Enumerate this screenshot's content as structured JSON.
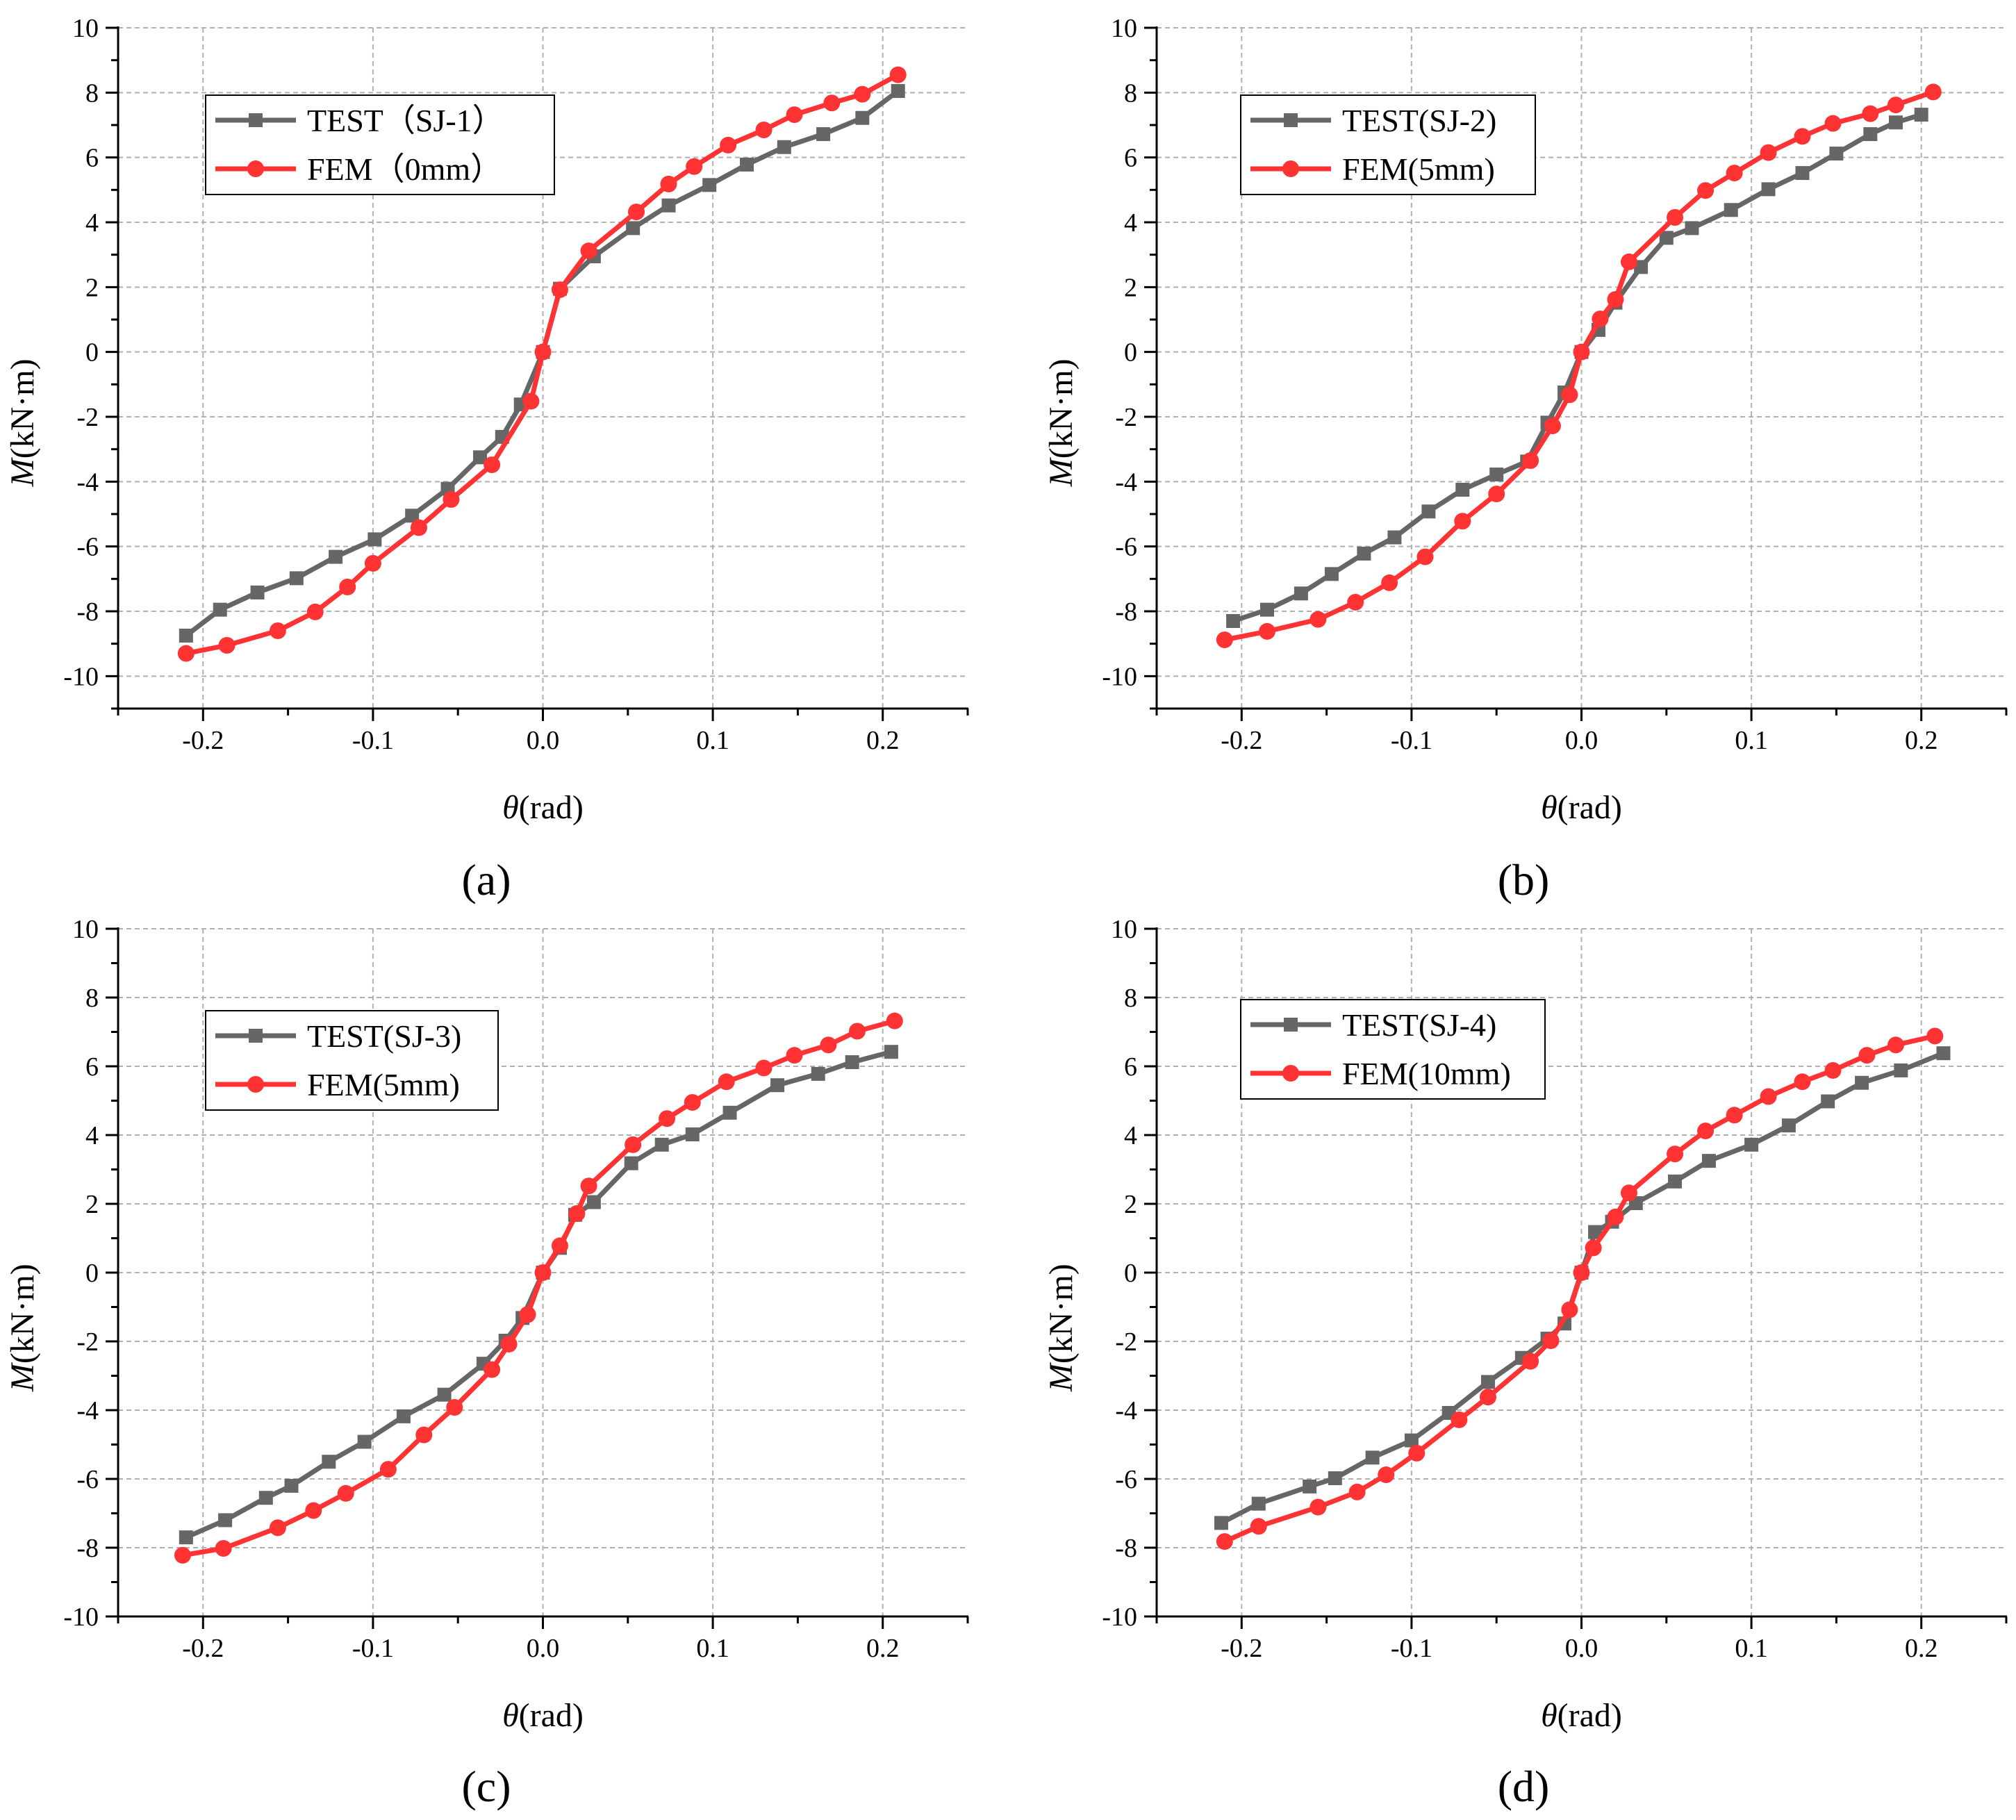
{
  "colors": {
    "test": "#666666",
    "fem": "#ff3333",
    "grid": "#b0b0b0",
    "axis": "#000000"
  },
  "axis_labels": {
    "x_symbol": "θ",
    "x_unit": "(rad)",
    "y_symbol": "M",
    "y_unit": "(kN·m)"
  },
  "chart_data": [
    {
      "type": "line",
      "panel_label": "(a)",
      "xlim": [
        -0.25,
        0.25
      ],
      "ylim": [
        -11,
        10
      ],
      "xticks": [
        -0.2,
        -0.1,
        0.0,
        0.1,
        0.2
      ],
      "xtick_labels": [
        "-0.2",
        "-0.1",
        "0.0",
        "0.1",
        "0.2"
      ],
      "yticks": [
        -10,
        -8,
        -6,
        -4,
        -2,
        0,
        2,
        4,
        6,
        8,
        10
      ],
      "ytick_labels": [
        "-10",
        "-8",
        "-6",
        "-4",
        "-2",
        "0",
        "2",
        "4",
        "6",
        "8",
        "10"
      ],
      "xlabel": "θ (rad)",
      "ylabel": "M(kN·m)",
      "legend": "top-left",
      "series": [
        {
          "name": "TEST（SJ-1）",
          "marker": "square",
          "color": "#666666",
          "x": [
            -0.21,
            -0.19,
            -0.168,
            -0.145,
            -0.122,
            -0.099,
            -0.077,
            -0.056,
            -0.037,
            -0.024,
            -0.013,
            0.0,
            0.01,
            0.03,
            0.053,
            0.074,
            0.098,
            0.12,
            0.142,
            0.165,
            0.188,
            0.209
          ],
          "y": [
            -8.75,
            -7.95,
            -7.42,
            -6.98,
            -6.32,
            -5.78,
            -5.05,
            -4.22,
            -3.25,
            -2.62,
            -1.62,
            0.0,
            1.95,
            2.95,
            3.82,
            4.52,
            5.15,
            5.78,
            6.32,
            6.72,
            7.22,
            8.05
          ]
        },
        {
          "name": "FEM（0mm）",
          "marker": "circle",
          "color": "#ff3333",
          "x": [
            -0.21,
            -0.186,
            -0.156,
            -0.134,
            -0.115,
            -0.1,
            -0.073,
            -0.054,
            -0.03,
            -0.007,
            0.0,
            0.01,
            0.027,
            0.055,
            0.074,
            0.089,
            0.109,
            0.13,
            0.148,
            0.17,
            0.188,
            0.209
          ],
          "y": [
            -9.3,
            -9.05,
            -8.6,
            -8.02,
            -7.25,
            -6.52,
            -5.42,
            -4.55,
            -3.48,
            -1.52,
            0.0,
            1.92,
            3.12,
            4.32,
            5.18,
            5.72,
            6.38,
            6.85,
            7.32,
            7.68,
            7.95,
            8.55
          ]
        }
      ]
    },
    {
      "type": "line",
      "panel_label": "(b)",
      "xlim": [
        -0.25,
        0.25
      ],
      "ylim": [
        -11,
        10
      ],
      "xticks": [
        -0.2,
        -0.1,
        0.0,
        0.1,
        0.2
      ],
      "xtick_labels": [
        "-0.2",
        "-0.1",
        "0.0",
        "0.1",
        "0.2"
      ],
      "yticks": [
        -10,
        -8,
        -6,
        -4,
        -2,
        0,
        2,
        4,
        6,
        8,
        10
      ],
      "ytick_labels": [
        "-10",
        "-8",
        "-6",
        "-4",
        "-2",
        "0",
        "2",
        "4",
        "6",
        "8",
        "10"
      ],
      "xlabel": "θ (rad)",
      "ylabel": "M(kN·m)",
      "legend": "top-left",
      "series": [
        {
          "name": "TEST(SJ-2)",
          "marker": "square",
          "color": "#666666",
          "x": [
            -0.205,
            -0.185,
            -0.165,
            -0.147,
            -0.128,
            -0.11,
            -0.09,
            -0.07,
            -0.05,
            -0.032,
            -0.02,
            -0.01,
            0.0,
            0.01,
            0.02,
            0.035,
            0.05,
            0.065,
            0.088,
            0.11,
            0.13,
            0.15,
            0.17,
            0.185,
            0.2
          ],
          "y": [
            -8.3,
            -7.95,
            -7.45,
            -6.85,
            -6.22,
            -5.72,
            -4.92,
            -4.25,
            -3.78,
            -3.38,
            -2.18,
            -1.25,
            0.0,
            0.68,
            1.52,
            2.62,
            3.52,
            3.82,
            4.38,
            5.02,
            5.52,
            6.12,
            6.72,
            7.08,
            7.32
          ]
        },
        {
          "name": "FEM(5mm)",
          "marker": "circle",
          "color": "#ff3333",
          "x": [
            -0.21,
            -0.185,
            -0.155,
            -0.133,
            -0.113,
            -0.092,
            -0.07,
            -0.05,
            -0.03,
            -0.017,
            -0.007,
            0.0,
            0.011,
            0.02,
            0.028,
            0.055,
            0.073,
            0.09,
            0.11,
            0.13,
            0.148,
            0.17,
            0.185,
            0.207
          ],
          "y": [
            -8.88,
            -8.62,
            -8.25,
            -7.72,
            -7.12,
            -6.32,
            -5.22,
            -4.38,
            -3.35,
            -2.28,
            -1.32,
            0.0,
            1.02,
            1.62,
            2.78,
            4.15,
            4.98,
            5.52,
            6.15,
            6.65,
            7.05,
            7.35,
            7.62,
            8.02
          ]
        }
      ]
    },
    {
      "type": "line",
      "panel_label": "(c)",
      "xlim": [
        -0.25,
        0.25
      ],
      "ylim": [
        -10,
        10
      ],
      "xticks": [
        -0.2,
        -0.1,
        0.0,
        0.1,
        0.2
      ],
      "xtick_labels": [
        "-0.2",
        "-0.1",
        "0.0",
        "0.1",
        "0.2"
      ],
      "yticks": [
        -10,
        -8,
        -6,
        -4,
        -2,
        0,
        2,
        4,
        6,
        8,
        10
      ],
      "ytick_labels": [
        "-10",
        "-8",
        "-6",
        "-4",
        "-2",
        "0",
        "2",
        "4",
        "6",
        "8",
        "10"
      ],
      "xlabel": "θ (rad)",
      "ylabel": "M(kN·m)",
      "legend": "top-left",
      "series": [
        {
          "name": "TEST(SJ-3)",
          "marker": "square",
          "color": "#666666",
          "x": [
            -0.21,
            -0.187,
            -0.163,
            -0.148,
            -0.126,
            -0.105,
            -0.082,
            -0.058,
            -0.035,
            -0.022,
            -0.012,
            0.0,
            0.01,
            0.019,
            0.03,
            0.052,
            0.07,
            0.088,
            0.11,
            0.138,
            0.162,
            0.182,
            0.205
          ],
          "y": [
            -7.7,
            -7.2,
            -6.55,
            -6.2,
            -5.5,
            -4.92,
            -4.18,
            -3.55,
            -2.65,
            -1.98,
            -1.32,
            0.0,
            0.72,
            1.68,
            2.05,
            3.18,
            3.72,
            4.02,
            4.65,
            5.45,
            5.78,
            6.12,
            6.42
          ]
        },
        {
          "name": "FEM(5mm)",
          "marker": "circle",
          "color": "#ff3333",
          "x": [
            -0.212,
            -0.188,
            -0.156,
            -0.135,
            -0.116,
            -0.091,
            -0.07,
            -0.052,
            -0.03,
            -0.02,
            -0.009,
            0.0,
            0.01,
            0.02,
            0.027,
            0.053,
            0.073,
            0.088,
            0.108,
            0.13,
            0.148,
            0.168,
            0.185,
            0.207
          ],
          "y": [
            -8.22,
            -8.02,
            -7.42,
            -6.92,
            -6.42,
            -5.72,
            -4.72,
            -3.92,
            -2.82,
            -2.08,
            -1.22,
            0.0,
            0.78,
            1.72,
            2.52,
            3.72,
            4.48,
            4.95,
            5.55,
            5.95,
            6.32,
            6.62,
            7.02,
            7.32
          ]
        }
      ]
    },
    {
      "type": "line",
      "panel_label": "(d)",
      "xlim": [
        -0.25,
        0.25
      ],
      "ylim": [
        -10,
        10
      ],
      "xticks": [
        -0.2,
        -0.1,
        0.0,
        0.1,
        0.2
      ],
      "xtick_labels": [
        "-0.2",
        "-0.1",
        "0.0",
        "0.1",
        "0.2"
      ],
      "yticks": [
        -10,
        -8,
        -6,
        -4,
        -2,
        0,
        2,
        4,
        6,
        8,
        10
      ],
      "ytick_labels": [
        "-10",
        "-8",
        "-6",
        "-4",
        "-2",
        "0",
        "2",
        "4",
        "6",
        "8",
        "10"
      ],
      "xlabel": "θ (rad)",
      "ylabel": "M(kN·m)",
      "legend": "top-left",
      "series": [
        {
          "name": "TEST(SJ-4)",
          "marker": "square",
          "color": "#666666",
          "x": [
            -0.212,
            -0.19,
            -0.16,
            -0.145,
            -0.123,
            -0.1,
            -0.078,
            -0.055,
            -0.035,
            -0.02,
            -0.01,
            0.0,
            0.008,
            0.018,
            0.032,
            0.055,
            0.075,
            0.1,
            0.122,
            0.145,
            0.165,
            0.188,
            0.213
          ],
          "y": [
            -7.28,
            -6.72,
            -6.22,
            -5.98,
            -5.38,
            -4.88,
            -4.08,
            -3.18,
            -2.48,
            -1.92,
            -1.48,
            0.0,
            1.18,
            1.48,
            2.02,
            2.65,
            3.25,
            3.72,
            4.28,
            4.98,
            5.52,
            5.88,
            6.38
          ]
        },
        {
          "name": "FEM(10mm)",
          "marker": "circle",
          "color": "#ff3333",
          "x": [
            -0.21,
            -0.19,
            -0.155,
            -0.132,
            -0.115,
            -0.097,
            -0.072,
            -0.055,
            -0.03,
            -0.018,
            -0.007,
            0.0,
            0.007,
            0.02,
            0.028,
            0.055,
            0.073,
            0.09,
            0.11,
            0.13,
            0.148,
            0.168,
            0.185,
            0.208
          ],
          "y": [
            -7.82,
            -7.38,
            -6.82,
            -6.38,
            -5.88,
            -5.25,
            -4.28,
            -3.62,
            -2.58,
            -1.98,
            -1.08,
            0.0,
            0.72,
            1.62,
            2.32,
            3.45,
            4.12,
            4.58,
            5.12,
            5.55,
            5.88,
            6.32,
            6.62,
            6.88
          ]
        }
      ]
    }
  ]
}
